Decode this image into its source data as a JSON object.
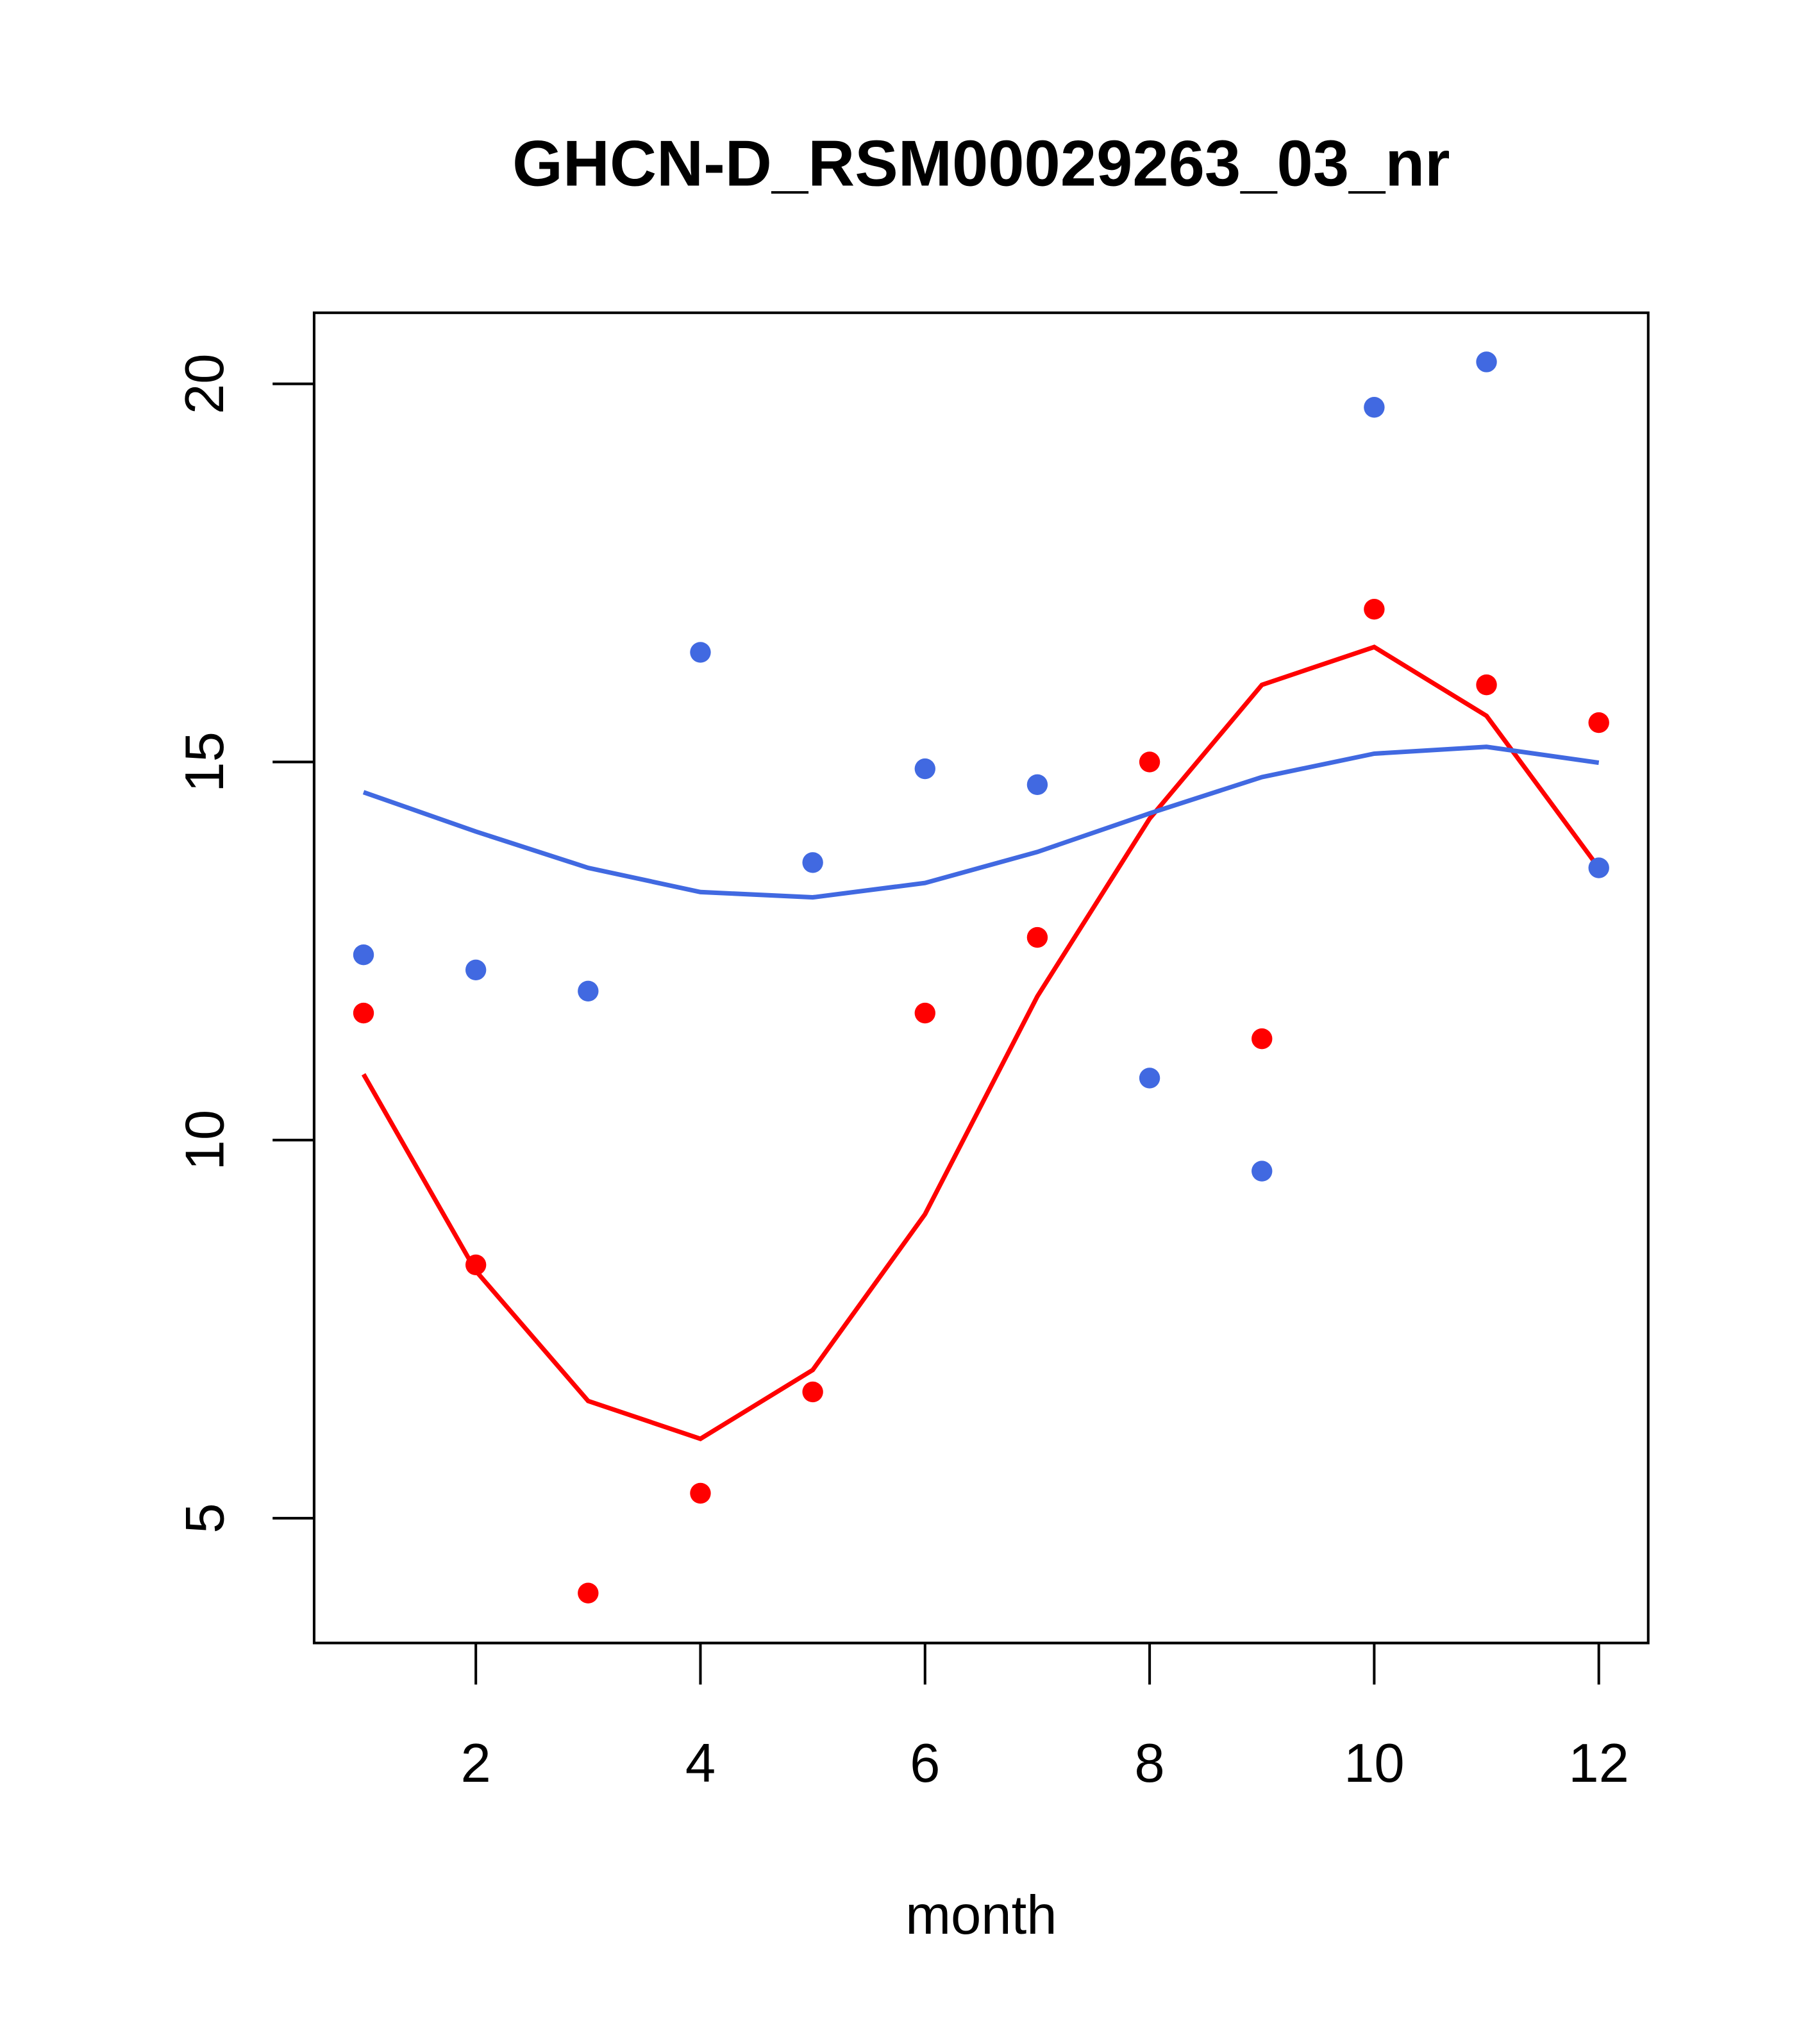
{
  "chart_data": {
    "type": "scatter",
    "title": "GHCN-D_RSM00029263_03_nr",
    "xlabel": "month",
    "ylabel": "",
    "xlim": [
      0.56,
      12.44
    ],
    "ylim": [
      3.35,
      20.94
    ],
    "xticks": [
      2,
      4,
      6,
      8,
      10,
      12
    ],
    "yticks": [
      5,
      10,
      15,
      20
    ],
    "grid": false,
    "x": [
      1,
      2,
      3,
      4,
      5,
      6,
      7,
      8,
      9,
      10,
      11,
      12
    ],
    "series": [
      {
        "name": "red points",
        "kind": "points",
        "color": "#FF0000",
        "values": [
          11.68,
          8.35,
          4.01,
          5.33,
          6.67,
          11.68,
          12.68,
          15.0,
          11.34,
          17.02,
          16.02,
          15.52
        ]
      },
      {
        "name": "blue points",
        "kind": "points",
        "color": "#4169E1",
        "values": [
          12.45,
          12.25,
          11.97,
          16.45,
          13.67,
          14.91,
          14.7,
          10.82,
          9.59,
          19.69,
          20.29,
          13.6
        ]
      },
      {
        "name": "red line",
        "kind": "line",
        "color": "#FF0000",
        "values": [
          10.87,
          8.27,
          6.55,
          6.05,
          6.96,
          9.02,
          11.9,
          14.25,
          16.02,
          16.52,
          15.61,
          13.6
        ]
      },
      {
        "name": "blue line",
        "kind": "line",
        "color": "#4169E1",
        "values": [
          14.6,
          14.08,
          13.6,
          13.28,
          13.21,
          13.4,
          13.81,
          14.32,
          14.8,
          15.11,
          15.2,
          14.99
        ]
      }
    ]
  }
}
